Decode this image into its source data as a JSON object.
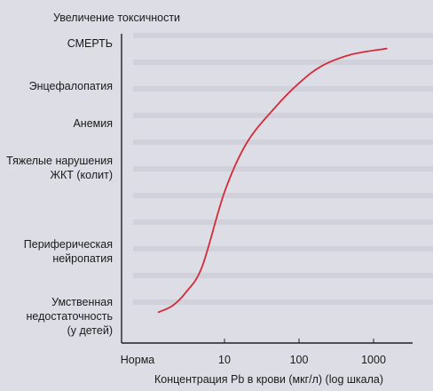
{
  "chart_data": {
    "type": "line",
    "ylabel": "Увеличение токсичности",
    "xlabel": "Концентрация Pb в крови (мкг/л) (log шкала)",
    "x_scale": "log",
    "y_categories": [
      "Умственная недостаточность (у детей)",
      "Периферическая нейропатия",
      "Тяжелые нарушения ЖКТ (колит)",
      "Анемия",
      "Энцефалопатия",
      "СМЕРТЬ"
    ],
    "y_labels": [
      [
        "Умственная",
        "недостаточность",
        "(у детей)"
      ],
      [
        "Периферическая",
        "нейропатия"
      ],
      [
        "Тяжелые нарушения",
        "ЖКТ (колит)"
      ],
      [
        "Анемия"
      ],
      [
        "Энцефалопатия"
      ],
      [
        "СМЕРТЬ"
      ]
    ],
    "x_tick_labels": [
      "Норма",
      "10",
      "100",
      "1000"
    ],
    "x_tick_values": [
      null,
      10,
      100,
      1000
    ],
    "series": [
      {
        "color": "#d42b3a",
        "points": [
          [
            1.3,
            0.05
          ],
          [
            2,
            0.15
          ],
          [
            3,
            0.35
          ],
          [
            5,
            0.75
          ],
          [
            10,
            1.7
          ],
          [
            20,
            2.55
          ],
          [
            50,
            3.45
          ],
          [
            100,
            4.05
          ],
          [
            200,
            4.45
          ],
          [
            500,
            4.72
          ],
          [
            1500,
            4.86
          ]
        ]
      }
    ],
    "grid": false,
    "legend": "none"
  }
}
